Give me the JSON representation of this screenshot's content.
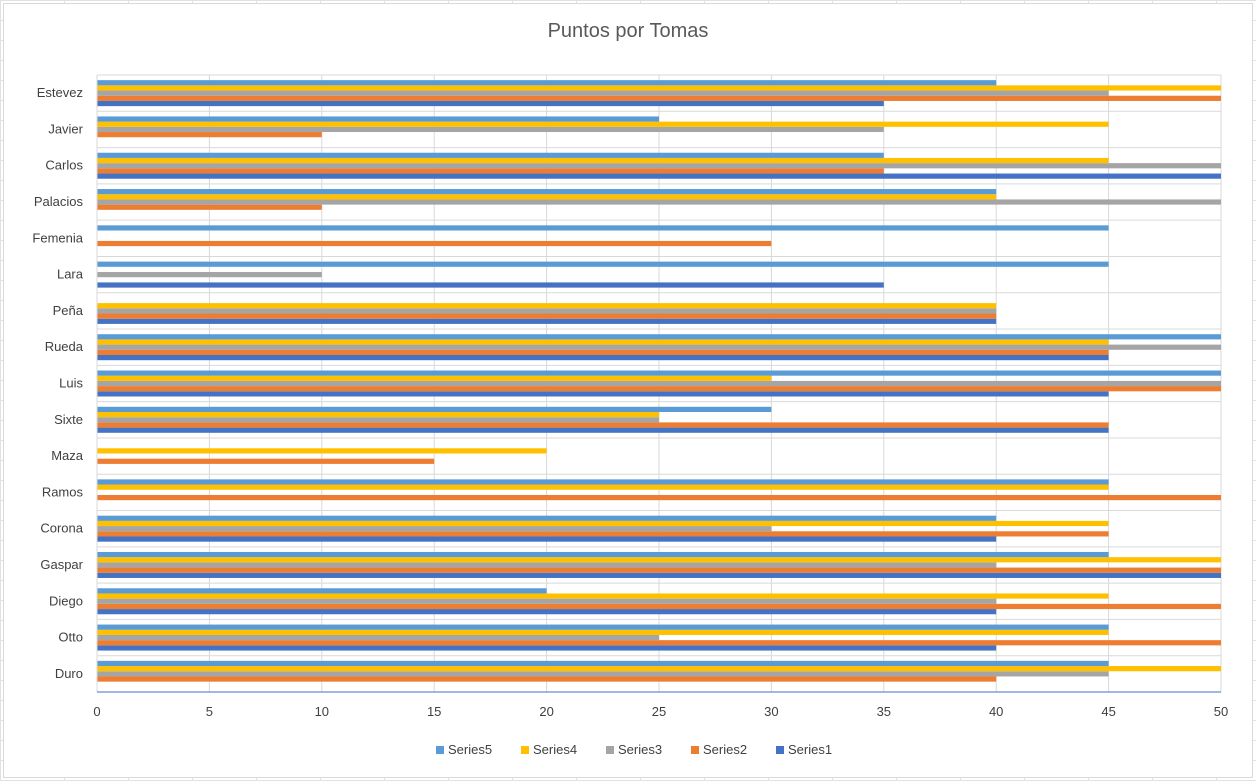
{
  "chart_data": {
    "type": "bar",
    "orientation": "horizontal",
    "title": "Puntos por Tomas",
    "xlabel": "",
    "ylabel": "",
    "xlim": [
      0,
      50
    ],
    "x_ticks": [
      0,
      5,
      10,
      15,
      20,
      25,
      30,
      35,
      40,
      45,
      50
    ],
    "grid": true,
    "legend_position": "bottom",
    "categories": [
      "Duro",
      "Otto",
      "Diego",
      "Gaspar",
      "Corona",
      "Ramos",
      "Maza",
      "Sixte",
      "Luis",
      "Rueda",
      "Peña",
      "Lara",
      "Femenia",
      "Palacios",
      "Carlos",
      "Javier",
      "Estevez"
    ],
    "series": [
      {
        "name": "Series1",
        "color": "#4472C4",
        "values": [
          null,
          40,
          40,
          50,
          40,
          null,
          null,
          45,
          45,
          45,
          40,
          35,
          null,
          null,
          50,
          null,
          35
        ]
      },
      {
        "name": "Series2",
        "color": "#ED7D31",
        "values": [
          40,
          50,
          50,
          50,
          45,
          50,
          15,
          45,
          50,
          45,
          40,
          null,
          30,
          10,
          35,
          10,
          50
        ]
      },
      {
        "name": "Series3",
        "color": "#A5A5A5",
        "values": [
          45,
          25,
          40,
          40,
          30,
          null,
          null,
          25,
          50,
          50,
          40,
          10,
          null,
          50,
          50,
          35,
          45
        ]
      },
      {
        "name": "Series4",
        "color": "#FFC000",
        "values": [
          50,
          45,
          45,
          50,
          45,
          45,
          20,
          25,
          30,
          45,
          40,
          null,
          null,
          40,
          45,
          45,
          50
        ]
      },
      {
        "name": "Series5",
        "color": "#5B9BD5",
        "values": [
          45,
          45,
          20,
          45,
          40,
          45,
          null,
          30,
          50,
          50,
          null,
          45,
          45,
          40,
          35,
          25,
          40
        ]
      }
    ],
    "legend_order": [
      "Series5",
      "Series4",
      "Series3",
      "Series2",
      "Series1"
    ]
  },
  "colors": {
    "gridline": "#d9d9d9",
    "axis_line": "#4472C4",
    "text": "#404040"
  }
}
